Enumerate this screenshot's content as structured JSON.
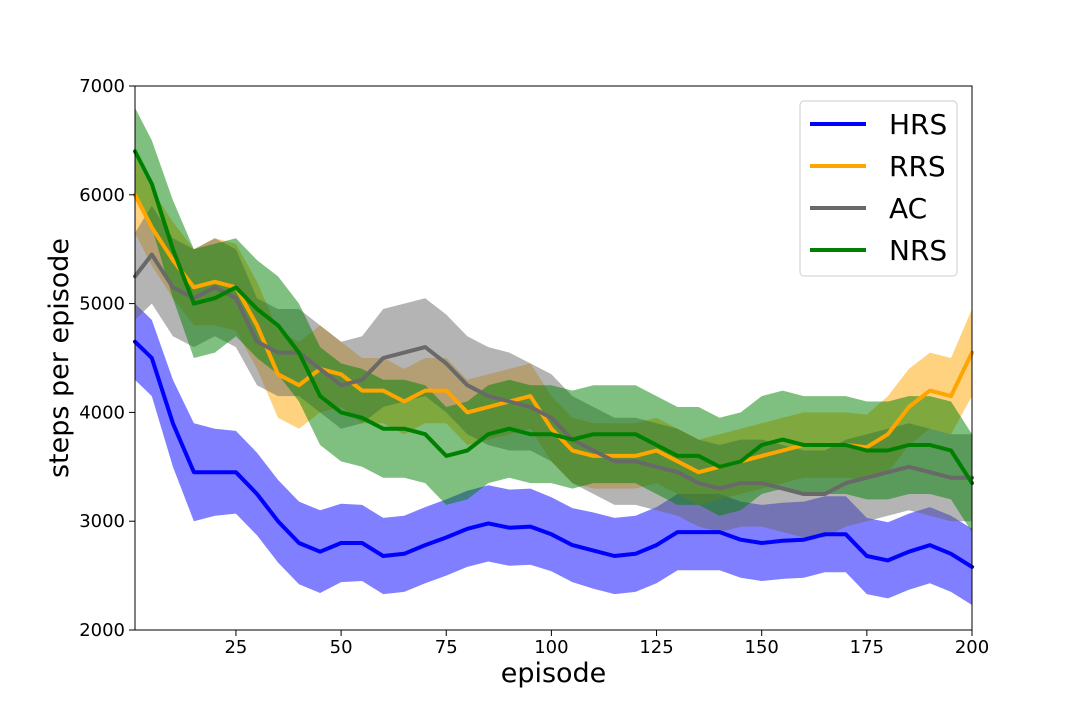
{
  "chart_data": {
    "type": "line",
    "title": "",
    "xlabel": "episode",
    "ylabel": "steps per episode",
    "xlim": [
      1,
      200
    ],
    "ylim": [
      2000,
      7000
    ],
    "xticks": [
      25,
      50,
      75,
      100,
      125,
      150,
      175,
      200
    ],
    "yticks": [
      2000,
      3000,
      4000,
      5000,
      6000,
      7000
    ],
    "xtick_labels": [
      "25",
      "50",
      "75",
      "100",
      "125",
      "150",
      "175",
      "200"
    ],
    "ytick_labels": [
      "2000",
      "3000",
      "4000",
      "5000",
      "6000",
      "7000"
    ],
    "grid": false,
    "legend_position": "top-right",
    "x": [
      1,
      5,
      10,
      15,
      20,
      25,
      30,
      35,
      40,
      45,
      50,
      55,
      60,
      65,
      70,
      75,
      80,
      85,
      90,
      95,
      100,
      105,
      110,
      115,
      120,
      125,
      130,
      135,
      140,
      145,
      150,
      155,
      160,
      165,
      170,
      175,
      180,
      185,
      190,
      195,
      200
    ],
    "series": [
      {
        "name": "HRS",
        "color": "#0000ff",
        "values": [
          4650,
          4500,
          3900,
          3450,
          3450,
          3450,
          3250,
          3000,
          2800,
          2720,
          2800,
          2800,
          2680,
          2700,
          2780,
          2850,
          2930,
          2980,
          2940,
          2950,
          2880,
          2780,
          2730,
          2680,
          2700,
          2780,
          2900,
          2900,
          2900,
          2830,
          2800,
          2820,
          2830,
          2880,
          2880,
          2680,
          2640,
          2720,
          2780,
          2700,
          2580
        ],
        "band": [
          350,
          350,
          400,
          450,
          400,
          380,
          380,
          380,
          380,
          380,
          360,
          350,
          350,
          350,
          350,
          350,
          350,
          350,
          350,
          350,
          340,
          340,
          350,
          350,
          350,
          350,
          350,
          350,
          350,
          350,
          350,
          350,
          350,
          350,
          350,
          350,
          350,
          350,
          350,
          350,
          350
        ]
      },
      {
        "name": "RRS",
        "color": "#ffa500",
        "values": [
          6000,
          5700,
          5400,
          5150,
          5200,
          5150,
          4800,
          4350,
          4250,
          4400,
          4350,
          4200,
          4200,
          4100,
          4200,
          4200,
          4000,
          4050,
          4100,
          4150,
          3850,
          3650,
          3600,
          3600,
          3600,
          3650,
          3550,
          3450,
          3500,
          3550,
          3600,
          3650,
          3700,
          3700,
          3700,
          3680,
          3800,
          4050,
          4200,
          4150,
          4550
        ],
        "band": [
          350,
          350,
          350,
          350,
          400,
          400,
          400,
          400,
          400,
          400,
          300,
          300,
          300,
          300,
          300,
          300,
          300,
          300,
          300,
          300,
          300,
          300,
          300,
          300,
          300,
          300,
          300,
          300,
          300,
          300,
          300,
          300,
          300,
          300,
          300,
          300,
          350,
          350,
          350,
          350,
          400
        ]
      },
      {
        "name": "AC",
        "color": "#696969",
        "values": [
          5250,
          5450,
          5150,
          5050,
          5150,
          5050,
          4650,
          4550,
          4550,
          4400,
          4250,
          4300,
          4500,
          4550,
          4600,
          4450,
          4250,
          4150,
          4100,
          4050,
          3950,
          3750,
          3650,
          3550,
          3550,
          3500,
          3450,
          3350,
          3300,
          3350,
          3350,
          3300,
          3250,
          3250,
          3350,
          3400,
          3450,
          3500,
          3450,
          3400,
          3400
        ],
        "band": [
          400,
          450,
          450,
          450,
          450,
          450,
          400,
          400,
          400,
          400,
          400,
          400,
          450,
          450,
          450,
          450,
          450,
          450,
          450,
          400,
          400,
          400,
          400,
          400,
          400,
          400,
          400,
          400,
          400,
          400,
          400,
          400,
          400,
          400,
          400,
          400,
          400,
          400,
          400,
          400,
          400
        ]
      },
      {
        "name": "NRS",
        "color": "#008000",
        "values": [
          6400,
          6100,
          5500,
          5000,
          5050,
          5150,
          4950,
          4800,
          4550,
          4150,
          4000,
          3950,
          3850,
          3850,
          3800,
          3600,
          3650,
          3800,
          3850,
          3800,
          3800,
          3750,
          3800,
          3800,
          3800,
          3700,
          3600,
          3600,
          3500,
          3550,
          3700,
          3750,
          3700,
          3700,
          3700,
          3650,
          3650,
          3700,
          3700,
          3650,
          3350
        ],
        "band": [
          400,
          400,
          450,
          500,
          500,
          450,
          450,
          450,
          450,
          450,
          450,
          450,
          450,
          450,
          450,
          450,
          450,
          450,
          450,
          450,
          450,
          450,
          450,
          450,
          450,
          450,
          450,
          450,
          450,
          450,
          450,
          450,
          450,
          450,
          450,
          450,
          450,
          450,
          450,
          450,
          450
        ]
      }
    ]
  }
}
